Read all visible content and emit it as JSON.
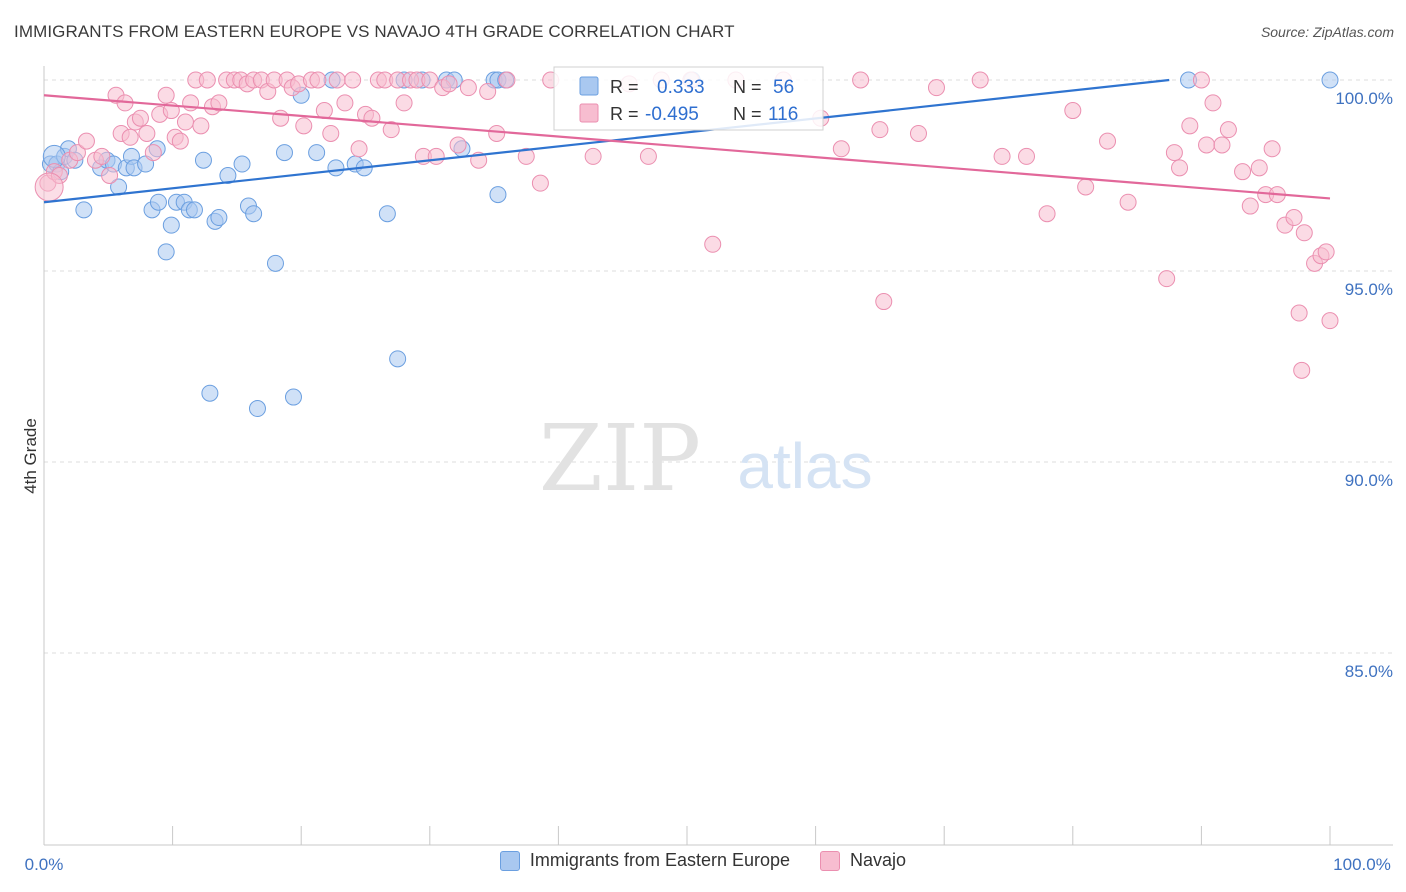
{
  "header": {
    "title": "IMMIGRANTS FROM EASTERN EUROPE VS NAVAJO 4TH GRADE CORRELATION CHART",
    "source": "Source: ZipAtlas.com"
  },
  "watermark": {
    "zip": "ZIP",
    "atlas": "atlas"
  },
  "stats_box": {
    "rows": [
      {
        "r_label": "R =",
        "r_value": "0.333",
        "n_label": "N =",
        "n_value": "56"
      },
      {
        "r_label": "R =",
        "r_value": "-0.495",
        "n_label": "N =",
        "n_value": "116"
      }
    ]
  },
  "legend": {
    "items": [
      "Immigrants from Eastern Europe",
      "Navajo"
    ]
  },
  "colors": {
    "blue_fill": "#a9c8f0",
    "blue_stroke": "#6b9fe0",
    "blue_line": "#2f74d0",
    "pink_fill": "#f7bdd0",
    "pink_stroke": "#eb8fb0",
    "pink_line": "#e2689a",
    "tick_label": "#3f72c0",
    "grid": "#dcdcdc"
  },
  "chart_data": {
    "type": "scatter",
    "title": "IMMIGRANTS FROM EASTERN EUROPE VS NAVAJO 4TH GRADE CORRELATION CHART",
    "xlabel": "",
    "ylabel": "4th Grade",
    "xlim": [
      0,
      100
    ],
    "ylim": [
      80.2,
      100.4
    ],
    "x_tick_labels": [
      "0.0%",
      "100.0%"
    ],
    "y_ticks": [
      {
        "value": 85,
        "label": "85.0%"
      },
      {
        "value": 90,
        "label": "90.0%"
      },
      {
        "value": 95,
        "label": "95.0%"
      },
      {
        "value": 100,
        "label": "100.0%"
      }
    ],
    "grid": true,
    "legend_position": "bottom-center",
    "series": [
      {
        "name": "Immigrants from Eastern Europe",
        "r": 0.333,
        "n": 56,
        "trend": {
          "x0": 0,
          "y0": 96.8,
          "x1": 87.5,
          "y1": 100.0
        },
        "points": [
          [
            0.5,
            97.8
          ],
          [
            1.0,
            97.8
          ],
          [
            1.3,
            97.6
          ],
          [
            1.6,
            98.0
          ],
          [
            1.9,
            98.2
          ],
          [
            2.4,
            97.9
          ],
          [
            3.1,
            96.6
          ],
          [
            4.4,
            97.7
          ],
          [
            4.9,
            97.9
          ],
          [
            5.4,
            97.8
          ],
          [
            5.8,
            97.2
          ],
          [
            6.4,
            97.7
          ],
          [
            6.8,
            98.0
          ],
          [
            7.0,
            97.7
          ],
          [
            7.9,
            97.8
          ],
          [
            8.4,
            96.6
          ],
          [
            8.8,
            98.2
          ],
          [
            8.9,
            96.8
          ],
          [
            9.5,
            95.5
          ],
          [
            9.9,
            96.2
          ],
          [
            10.3,
            96.8
          ],
          [
            10.9,
            96.8
          ],
          [
            11.3,
            96.6
          ],
          [
            11.7,
            96.6
          ],
          [
            12.4,
            97.9
          ],
          [
            12.9,
            91.8
          ],
          [
            13.3,
            96.3
          ],
          [
            13.6,
            96.4
          ],
          [
            14.3,
            97.5
          ],
          [
            15.4,
            97.8
          ],
          [
            15.9,
            96.7
          ],
          [
            16.3,
            96.5
          ],
          [
            16.6,
            91.4
          ],
          [
            18.0,
            95.2
          ],
          [
            18.7,
            98.1
          ],
          [
            19.4,
            91.7
          ],
          [
            20.0,
            99.6
          ],
          [
            21.2,
            98.1
          ],
          [
            22.4,
            100.0
          ],
          [
            22.7,
            97.7
          ],
          [
            24.2,
            97.8
          ],
          [
            24.9,
            97.7
          ],
          [
            26.7,
            96.5
          ],
          [
            27.5,
            92.7
          ],
          [
            28.0,
            100.0
          ],
          [
            29.4,
            100.0
          ],
          [
            31.3,
            100.0
          ],
          [
            31.9,
            100.0
          ],
          [
            32.5,
            98.2
          ],
          [
            35.0,
            100.0
          ],
          [
            35.3,
            100.0
          ],
          [
            35.9,
            100.0
          ],
          [
            35.3,
            97.0
          ],
          [
            50.4,
            100.0
          ],
          [
            89.0,
            100.0
          ],
          [
            100.0,
            100.0
          ]
        ]
      },
      {
        "name": "Navajo",
        "r": -0.495,
        "n": 116,
        "trend": {
          "x0": 0,
          "y0": 99.6,
          "x1": 100,
          "y1": 96.9
        },
        "points": [
          [
            0.3,
            97.3
          ],
          [
            0.8,
            97.6
          ],
          [
            1.2,
            97.5
          ],
          [
            2.0,
            97.9
          ],
          [
            2.6,
            98.1
          ],
          [
            3.3,
            98.4
          ],
          [
            4.0,
            97.9
          ],
          [
            4.5,
            98.0
          ],
          [
            5.1,
            97.5
          ],
          [
            5.6,
            99.6
          ],
          [
            6.0,
            98.6
          ],
          [
            6.3,
            99.4
          ],
          [
            6.7,
            98.5
          ],
          [
            7.1,
            98.9
          ],
          [
            7.5,
            99.0
          ],
          [
            8.0,
            98.6
          ],
          [
            8.5,
            98.1
          ],
          [
            9.0,
            99.1
          ],
          [
            9.5,
            99.6
          ],
          [
            9.9,
            99.2
          ],
          [
            10.2,
            98.5
          ],
          [
            10.6,
            98.4
          ],
          [
            11.0,
            98.9
          ],
          [
            11.4,
            99.4
          ],
          [
            11.8,
            100.0
          ],
          [
            12.2,
            98.8
          ],
          [
            12.7,
            100.0
          ],
          [
            13.1,
            99.3
          ],
          [
            13.6,
            99.4
          ],
          [
            14.2,
            100.0
          ],
          [
            14.8,
            100.0
          ],
          [
            15.3,
            100.0
          ],
          [
            15.8,
            99.9
          ],
          [
            16.3,
            100.0
          ],
          [
            16.9,
            100.0
          ],
          [
            17.4,
            99.7
          ],
          [
            17.9,
            100.0
          ],
          [
            18.4,
            99.0
          ],
          [
            18.9,
            100.0
          ],
          [
            19.3,
            99.8
          ],
          [
            19.8,
            99.9
          ],
          [
            20.2,
            98.8
          ],
          [
            20.8,
            100.0
          ],
          [
            21.3,
            100.0
          ],
          [
            21.8,
            99.2
          ],
          [
            22.3,
            98.6
          ],
          [
            22.8,
            100.0
          ],
          [
            23.4,
            99.4
          ],
          [
            24.0,
            100.0
          ],
          [
            24.5,
            98.2
          ],
          [
            25.0,
            99.1
          ],
          [
            25.5,
            99.0
          ],
          [
            26.0,
            100.0
          ],
          [
            26.5,
            100.0
          ],
          [
            27.0,
            98.7
          ],
          [
            27.5,
            100.0
          ],
          [
            28.0,
            99.4
          ],
          [
            28.5,
            100.0
          ],
          [
            29.0,
            100.0
          ],
          [
            29.5,
            98.0
          ],
          [
            30.0,
            100.0
          ],
          [
            30.5,
            98.0
          ],
          [
            31.0,
            99.8
          ],
          [
            31.5,
            99.9
          ],
          [
            32.2,
            98.3
          ],
          [
            33.0,
            99.8
          ],
          [
            33.8,
            97.9
          ],
          [
            34.5,
            99.7
          ],
          [
            35.2,
            98.6
          ],
          [
            36.0,
            100.0
          ],
          [
            37.5,
            98.0
          ],
          [
            38.6,
            97.3
          ],
          [
            39.4,
            100.0
          ],
          [
            42.7,
            98.0
          ],
          [
            45.5,
            99.9
          ],
          [
            47.0,
            98.0
          ],
          [
            48.0,
            100.0
          ],
          [
            50.3,
            100.0
          ],
          [
            52.0,
            95.7
          ],
          [
            53.8,
            100.0
          ],
          [
            57.5,
            100.0
          ],
          [
            60.4,
            99.0
          ],
          [
            62.0,
            98.2
          ],
          [
            63.5,
            100.0
          ],
          [
            65.0,
            98.7
          ],
          [
            65.3,
            94.2
          ],
          [
            68.0,
            98.6
          ],
          [
            69.4,
            99.8
          ],
          [
            72.8,
            100.0
          ],
          [
            74.5,
            98.0
          ],
          [
            76.4,
            98.0
          ],
          [
            78.0,
            96.5
          ],
          [
            80.0,
            99.2
          ],
          [
            81.0,
            97.2
          ],
          [
            82.7,
            98.4
          ],
          [
            84.3,
            96.8
          ],
          [
            87.3,
            94.8
          ],
          [
            87.9,
            98.1
          ],
          [
            88.3,
            97.7
          ],
          [
            89.1,
            98.8
          ],
          [
            90.0,
            100.0
          ],
          [
            90.4,
            98.3
          ],
          [
            90.9,
            99.4
          ],
          [
            91.6,
            98.3
          ],
          [
            92.1,
            98.7
          ],
          [
            93.2,
            97.6
          ],
          [
            93.8,
            96.7
          ],
          [
            94.5,
            97.7
          ],
          [
            95.0,
            97.0
          ],
          [
            95.5,
            98.2
          ],
          [
            95.9,
            97.0
          ],
          [
            96.5,
            96.2
          ],
          [
            97.2,
            96.4
          ],
          [
            97.6,
            93.9
          ],
          [
            98.0,
            96.0
          ],
          [
            98.8,
            95.2
          ],
          [
            97.8,
            92.4
          ],
          [
            99.3,
            95.4
          ],
          [
            99.7,
            95.5
          ],
          [
            100.0,
            93.7
          ]
        ]
      }
    ]
  }
}
